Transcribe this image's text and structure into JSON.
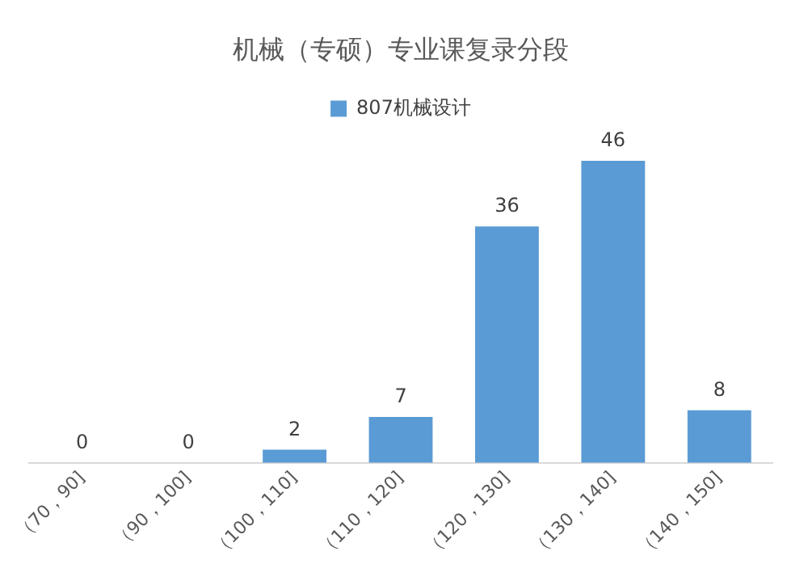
{
  "chart_data": {
    "type": "bar",
    "title": "机械（专硕）专业课复录分段",
    "categories": [
      "（70，90]",
      "（90，100]",
      "（100，110]",
      "（110，120]",
      "（120，130]",
      "（130，140]",
      "（140，150]"
    ],
    "series": [
      {
        "name": "807机械设计",
        "color": "#5b9bd5",
        "values": [
          0,
          0,
          2,
          7,
          36,
          46,
          8
        ]
      }
    ],
    "data_labels": true,
    "legend": "top",
    "grid": false
  }
}
